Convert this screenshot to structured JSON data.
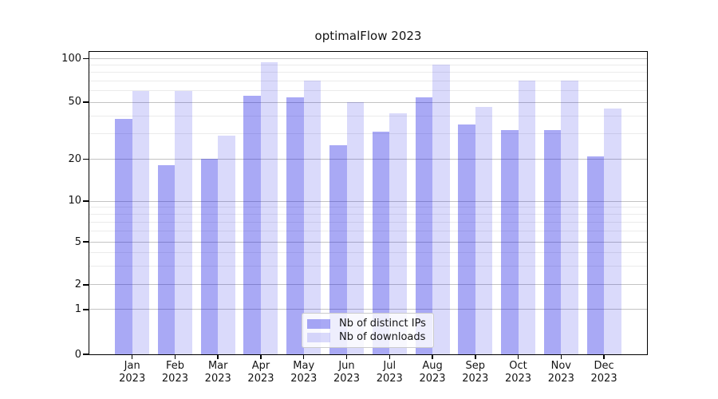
{
  "colors": {
    "bar_base": "#0a0ae1",
    "ips_alpha": 0.35,
    "downloads_alpha": 0.15,
    "major_grid": "#c3c3c3",
    "minor_grid": "#ebebeb",
    "axis": "#000000",
    "text": "#141414"
  },
  "chart_data": {
    "type": "bar",
    "title": "optimalFlow 2023",
    "categories": [
      "Jan 2023",
      "Feb 2023",
      "Mar 2023",
      "Apr 2023",
      "May 2023",
      "Jun 2023",
      "Jul 2023",
      "Aug 2023",
      "Sep 2023",
      "Oct 2023",
      "Nov 2023",
      "Dec 2023"
    ],
    "series": [
      {
        "name": "Nb of distinct IPs",
        "values": [
          38,
          18,
          20,
          55,
          54,
          25,
          31,
          54,
          35,
          32,
          32,
          21
        ]
      },
      {
        "name": "Nb of downloads",
        "values": [
          60,
          60,
          29,
          94,
          70,
          50,
          42,
          91,
          46,
          70,
          70,
          45
        ]
      }
    ],
    "xlabel": "",
    "ylabel": "",
    "yscale": "asinh",
    "ylim": [
      0,
      111
    ],
    "y_major_ticks": [
      0,
      1,
      2,
      5,
      10,
      20,
      50,
      100
    ],
    "y_minor_gridlines": [
      3,
      4,
      6,
      7,
      8,
      9,
      30,
      40,
      60,
      70,
      80,
      90
    ],
    "grid": "both",
    "legend_position": "lower center"
  }
}
